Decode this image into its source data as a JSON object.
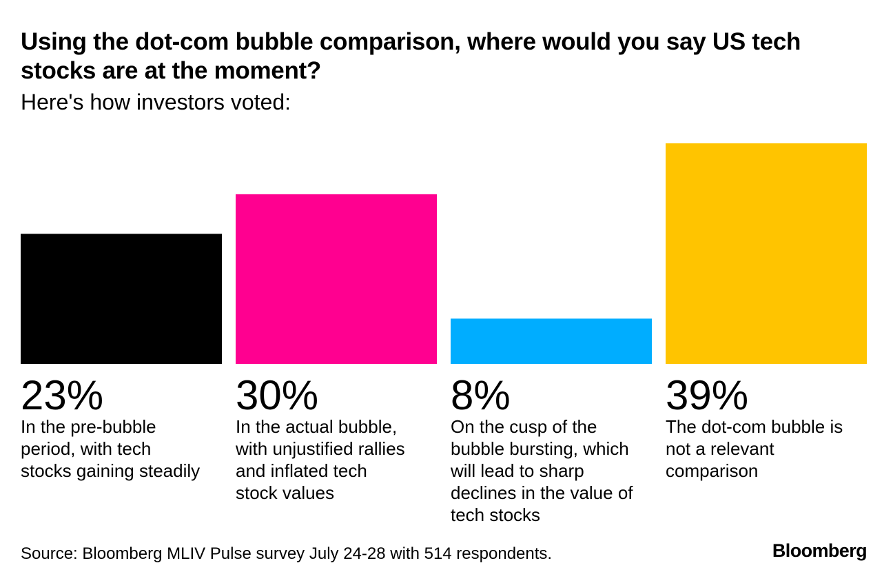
{
  "chart_data": {
    "type": "bar",
    "title": "Using the dot-com bubble comparison, where would you say US tech stocks are at the moment?",
    "subtitle": "Here's how investors voted:",
    "categories": [
      "In the pre-bubble period, with tech stocks gaining steadily",
      "In the actual bubble, with unjustified rallies and inflated tech stock values",
      "On the cusp of the bubble bursting, which will lead to sharp declines in the value of tech stocks",
      "The dot-com bubble is not a relevant comparison"
    ],
    "category_lines": [
      [
        "In the pre-bubble",
        "period, with tech",
        "stocks gaining steadily"
      ],
      [
        "In the actual bubble,",
        "with unjustified rallies",
        "and inflated tech",
        "stock values"
      ],
      [
        "On the cusp of the",
        "bubble bursting, which",
        "will lead to sharp",
        "declines in the value of",
        "tech stocks"
      ],
      [
        "The dot-com bubble is",
        "not a relevant",
        "comparison"
      ]
    ],
    "values": [
      23,
      30,
      8,
      39
    ],
    "value_labels": [
      "23%",
      "30%",
      "8%",
      "39%"
    ],
    "colors": [
      "#000000",
      "#ff0090",
      "#00adff",
      "#ffc400"
    ],
    "unit": "%",
    "ylim": [
      0,
      39
    ],
    "xlabel": "",
    "ylabel": "",
    "grid": false
  },
  "footer": {
    "source": "Source: Bloomberg MLIV Pulse survey July 24-28 with 514 respondents.",
    "logo": "Bloomberg"
  }
}
